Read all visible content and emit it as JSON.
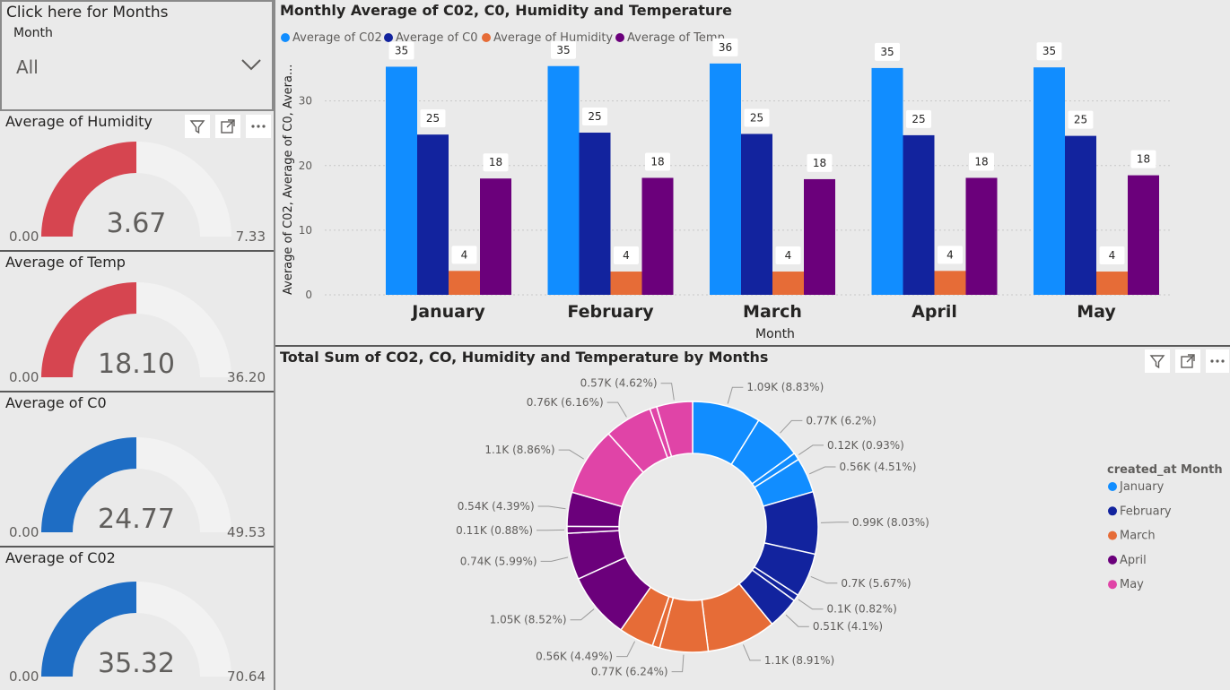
{
  "slicer": {
    "title": "Click here for Months",
    "label": "Month",
    "value": "All"
  },
  "gauges": [
    {
      "title": "Average of Humidity",
      "value": "3.67",
      "min": "0.00",
      "max": "7.33",
      "fraction": 0.5,
      "color": "#d64550"
    },
    {
      "title": "Average of Temp",
      "value": "18.10",
      "min": "0.00",
      "max": "36.20",
      "fraction": 0.5,
      "color": "#d64550"
    },
    {
      "title": "Average of C0",
      "value": "24.77",
      "min": "0.00",
      "max": "49.53",
      "fraction": 0.5,
      "color": "#1e6dc4"
    },
    {
      "title": "Average of C02",
      "value": "35.32",
      "min": "0.00",
      "max": "70.64",
      "fraction": 0.5,
      "color": "#1e6dc4"
    }
  ],
  "colors": {
    "co2": "#118dff",
    "co": "#12239e",
    "humidity": "#e66c37",
    "temp": "#6b007b",
    "may": "#e044a7"
  },
  "chart_data": [
    {
      "type": "bar",
      "title": "Monthly Average of C02, C0, Humidity and Temperature",
      "xlabel": "Month",
      "ylabel": "Average of C02, Average of C0, Avera...",
      "ylim": [
        0,
        38
      ],
      "yticks": [
        "0",
        "10",
        "20",
        "30"
      ],
      "categories": [
        "January",
        "February",
        "March",
        "April",
        "May"
      ],
      "series": [
        {
          "name": "Average of C02",
          "values": [
            35.3,
            35.4,
            35.8,
            35.1,
            35.2
          ],
          "labels": [
            "35",
            "35",
            "36",
            "35",
            "35"
          ]
        },
        {
          "name": "Average of C0",
          "values": [
            24.8,
            25.1,
            24.9,
            24.7,
            24.6
          ],
          "labels": [
            "25",
            "25",
            "25",
            "25",
            "25"
          ]
        },
        {
          "name": "Average of Humidity",
          "values": [
            3.7,
            3.6,
            3.6,
            3.7,
            3.6
          ],
          "labels": [
            "4",
            "4",
            "4",
            "4",
            "4"
          ]
        },
        {
          "name": "Average of Temp",
          "values": [
            18.0,
            18.1,
            17.9,
            18.1,
            18.5
          ],
          "labels": [
            "18",
            "18",
            "18",
            "18",
            "18"
          ]
        }
      ],
      "grid": true,
      "legend": "top-left"
    },
    {
      "type": "pie",
      "title": "Total Sum of CO2, CO, Humidity and Temperature by Months",
      "legend_title": "created_at Month",
      "legend": [
        "January",
        "February",
        "March",
        "April",
        "May"
      ],
      "slices": [
        {
          "month": "January",
          "pct": 8.83,
          "label": "1.09K (8.83%)"
        },
        {
          "month": "January",
          "pct": 6.2,
          "label": "0.77K (6.2%)"
        },
        {
          "month": "January",
          "pct": 0.93,
          "label": "0.12K (0.93%)"
        },
        {
          "month": "January",
          "pct": 4.51,
          "label": "0.56K (4.51%)"
        },
        {
          "month": "February",
          "pct": 8.03,
          "label": "0.99K (8.03%)"
        },
        {
          "month": "February",
          "pct": 5.67,
          "label": "0.7K (5.67%)"
        },
        {
          "month": "February",
          "pct": 0.82,
          "label": "0.1K (0.82%)"
        },
        {
          "month": "February",
          "pct": 4.1,
          "label": "0.51K (4.1%)"
        },
        {
          "month": "March",
          "pct": 8.91,
          "label": "1.1K (8.91%)"
        },
        {
          "month": "March",
          "pct": 6.24,
          "label": "0.77K (6.24%)"
        },
        {
          "month": "March",
          "pct": 0.95,
          "label": ""
        },
        {
          "month": "March",
          "pct": 4.49,
          "label": "0.56K (4.49%)"
        },
        {
          "month": "April",
          "pct": 8.52,
          "label": "1.05K (8.52%)"
        },
        {
          "month": "April",
          "pct": 5.99,
          "label": "0.74K (5.99%)"
        },
        {
          "month": "April",
          "pct": 0.88,
          "label": "0.11K (0.88%)"
        },
        {
          "month": "April",
          "pct": 4.39,
          "label": "0.54K (4.39%)"
        },
        {
          "month": "May",
          "pct": 8.86,
          "label": "1.1K (8.86%)"
        },
        {
          "month": "May",
          "pct": 6.16,
          "label": "0.76K (6.16%)"
        },
        {
          "month": "May",
          "pct": 0.9,
          "label": ""
        },
        {
          "month": "May",
          "pct": 4.62,
          "label": "0.57K (4.62%)"
        }
      ]
    }
  ]
}
